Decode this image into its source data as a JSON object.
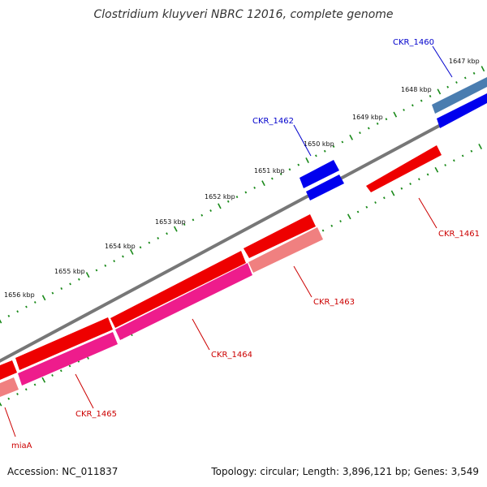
{
  "title": "Clostridium kluyveri NBRC 12016, complete genome",
  "footer": {
    "accession": "Accession: NC_011837",
    "summary": "Topology: circular; Length: 3,896,121 bp; Genes: 3,549"
  },
  "colors": {
    "backbone": "#777777",
    "forward_cds": "#0000ee",
    "forward_cds_alt": "#4a7db0",
    "reverse_cds": "#ee0000",
    "reverse_cds_light": "#f08080",
    "reverse_cds_magenta": "#ee1c8c",
    "forward_label": "#0000cc",
    "reverse_label": "#cc0000",
    "tick": "#1a8a1a"
  },
  "kbp_ticks": [
    "1647 kbp",
    "1648 kbp",
    "1649 kbp",
    "1650 kbp",
    "1651 kbp",
    "1652 kbp",
    "1653 kbp",
    "1654 kbp",
    "1655 kbp",
    "1656 kbp"
  ],
  "genes": [
    {
      "name": "CKR_1460",
      "strand": "forward"
    },
    {
      "name": "CKR_1461",
      "strand": "reverse"
    },
    {
      "name": "CKR_1462",
      "strand": "forward"
    },
    {
      "name": "CKR_1463",
      "strand": "reverse"
    },
    {
      "name": "CKR_1464",
      "strand": "reverse"
    },
    {
      "name": "CKR_1465",
      "strand": "reverse"
    },
    {
      "name": "miaA",
      "strand": "reverse"
    }
  ]
}
